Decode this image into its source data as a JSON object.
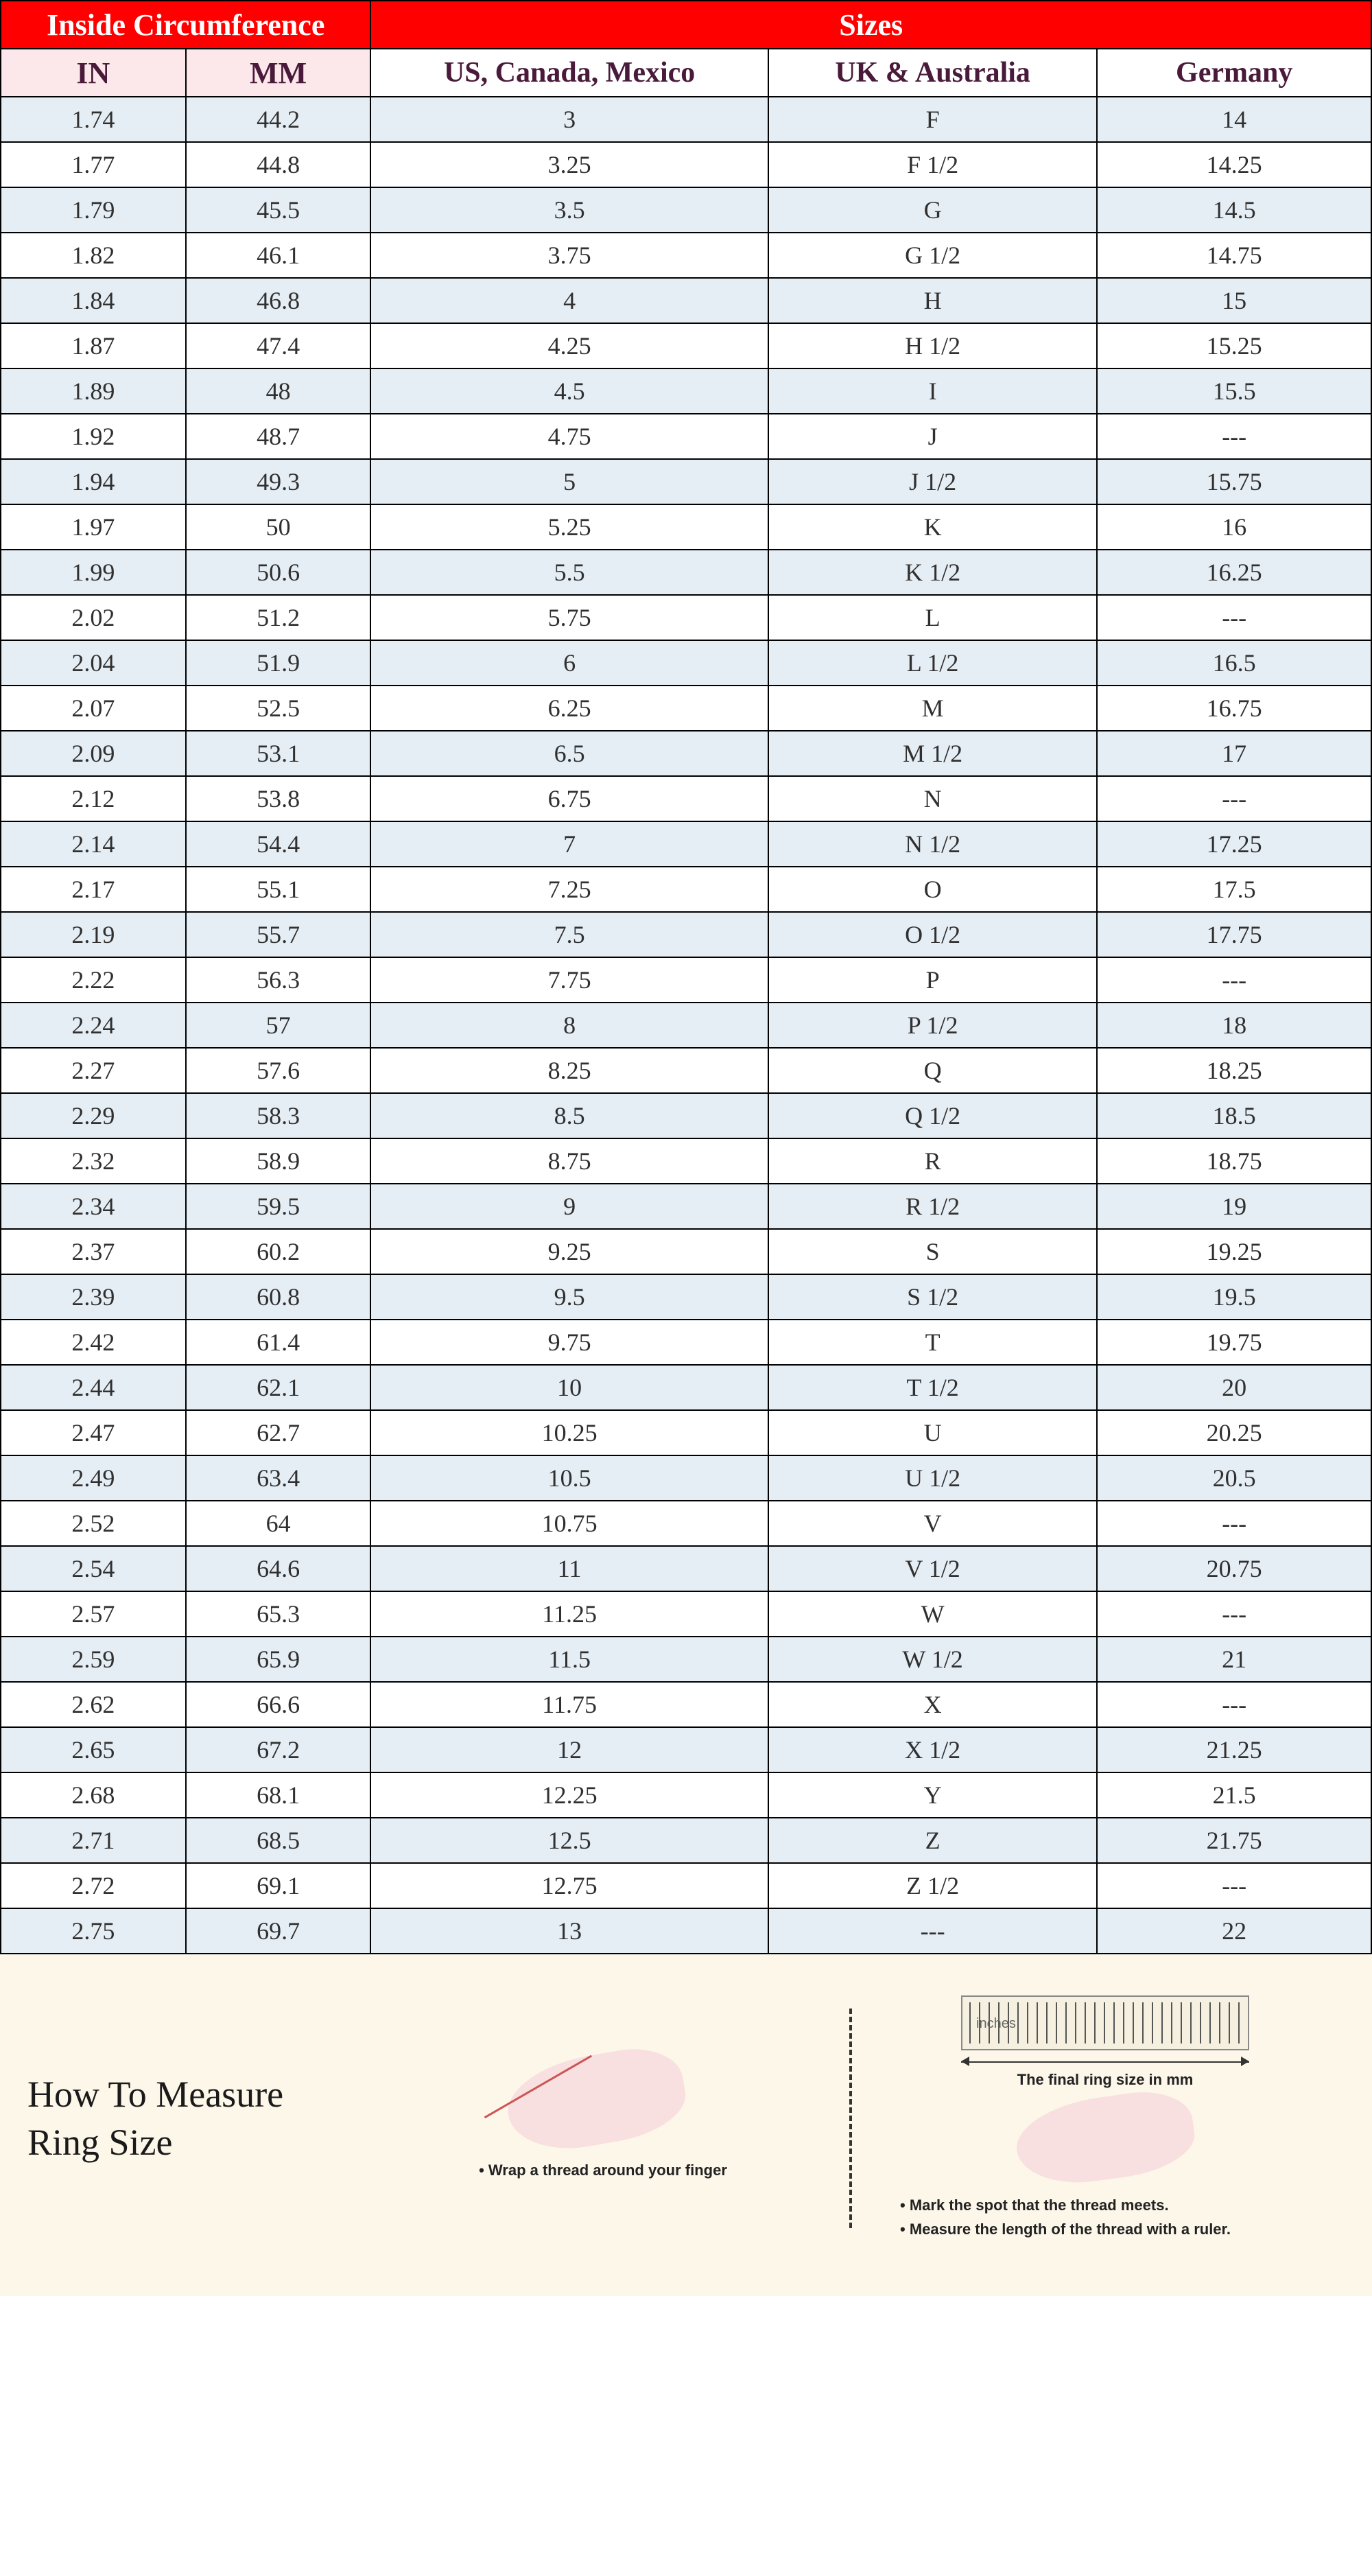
{
  "table": {
    "header_group_left": "Inside Circumference",
    "header_group_right": "Sizes",
    "columns": [
      "IN",
      "MM",
      "US, Canada, Mexico",
      "UK &  Australia",
      "Germany"
    ],
    "header_red_bg": "#ff0000",
    "header_red_fg": "#ffffff",
    "header_sub_bg_left": "#fce8ea",
    "header_sub_bg_right": "#ffffff",
    "header_sub_fg": "#4a1a3a",
    "row_odd_bg": "#e6eef5",
    "row_even_bg": "#ffffff",
    "cell_fg": "#303030",
    "border_color": "#000000",
    "header_fontsize": 44,
    "subheader_fontsize": 42,
    "cell_fontsize": 36,
    "rows": [
      [
        "1.74",
        "44.2",
        "3",
        "F",
        "14"
      ],
      [
        "1.77",
        "44.8",
        "3.25",
        "F 1/2",
        "14.25"
      ],
      [
        "1.79",
        "45.5",
        "3.5",
        "G",
        "14.5"
      ],
      [
        "1.82",
        "46.1",
        "3.75",
        "G 1/2",
        "14.75"
      ],
      [
        "1.84",
        "46.8",
        "4",
        "H",
        "15"
      ],
      [
        "1.87",
        "47.4",
        "4.25",
        "H 1/2",
        "15.25"
      ],
      [
        "1.89",
        "48",
        "4.5",
        "I",
        "15.5"
      ],
      [
        "1.92",
        "48.7",
        "4.75",
        "J",
        "---"
      ],
      [
        "1.94",
        "49.3",
        "5",
        "J 1/2",
        "15.75"
      ],
      [
        "1.97",
        "50",
        "5.25",
        "K",
        "16"
      ],
      [
        "1.99",
        "50.6",
        "5.5",
        "K 1/2",
        "16.25"
      ],
      [
        "2.02",
        "51.2",
        "5.75",
        "L",
        "---"
      ],
      [
        "2.04",
        "51.9",
        "6",
        "L 1/2",
        "16.5"
      ],
      [
        "2.07",
        "52.5",
        "6.25",
        "M",
        "16.75"
      ],
      [
        "2.09",
        "53.1",
        "6.5",
        "M 1/2",
        "17"
      ],
      [
        "2.12",
        "53.8",
        "6.75",
        "N",
        "---"
      ],
      [
        "2.14",
        "54.4",
        "7",
        "N 1/2",
        "17.25"
      ],
      [
        "2.17",
        "55.1",
        "7.25",
        "O",
        "17.5"
      ],
      [
        "2.19",
        "55.7",
        "7.5",
        "O 1/2",
        "17.75"
      ],
      [
        "2.22",
        "56.3",
        "7.75",
        "P",
        "---"
      ],
      [
        "2.24",
        "57",
        "8",
        "P 1/2",
        "18"
      ],
      [
        "2.27",
        "57.6",
        "8.25",
        "Q",
        "18.25"
      ],
      [
        "2.29",
        "58.3",
        "8.5",
        "Q 1/2",
        "18.5"
      ],
      [
        "2.32",
        "58.9",
        "8.75",
        "R",
        "18.75"
      ],
      [
        "2.34",
        "59.5",
        "9",
        "R 1/2",
        "19"
      ],
      [
        "2.37",
        "60.2",
        "9.25",
        "S",
        "19.25"
      ],
      [
        "2.39",
        "60.8",
        "9.5",
        "S 1/2",
        "19.5"
      ],
      [
        "2.42",
        "61.4",
        "9.75",
        "T",
        "19.75"
      ],
      [
        "2.44",
        "62.1",
        "10",
        "T 1/2",
        "20"
      ],
      [
        "2.47",
        "62.7",
        "10.25",
        "U",
        "20.25"
      ],
      [
        "2.49",
        "63.4",
        "10.5",
        "U 1/2",
        "20.5"
      ],
      [
        "2.52",
        "64",
        "10.75",
        "V",
        "---"
      ],
      [
        "2.54",
        "64.6",
        "11",
        "V 1/2",
        "20.75"
      ],
      [
        "2.57",
        "65.3",
        "11.25",
        "W",
        "---"
      ],
      [
        "2.59",
        "65.9",
        "11.5",
        "W 1/2",
        "21"
      ],
      [
        "2.62",
        "66.6",
        "11.75",
        "X",
        "---"
      ],
      [
        "2.65",
        "67.2",
        "12",
        "X 1/2",
        "21.25"
      ],
      [
        "2.68",
        "68.1",
        "12.25",
        "Y",
        "21.5"
      ],
      [
        "2.71",
        "68.5",
        "12.5",
        "Z",
        "21.75"
      ],
      [
        "2.72",
        "69.1",
        "12.75",
        "Z 1/2",
        "---"
      ],
      [
        "2.75",
        "69.7",
        "13",
        "---",
        "22"
      ]
    ]
  },
  "footer": {
    "title_line1": "How To Measure",
    "title_line2": "Ring Size",
    "background": "#fdf7ea",
    "title_fontsize": 54,
    "step1_bullet": "• Wrap a thread around your finger",
    "arrow_caption": "The final ring size in mm",
    "ruler_inches_label": "inches",
    "step2_bullet1": "• Mark the spot that the thread meets.",
    "step2_bullet2": "• Measure the length of the thread with a ruler.",
    "hand_color": "#f9e0e0",
    "thread_color": "#cc5555",
    "ruler_bg": "#f5f0e0",
    "bullet_fontsize": 22
  }
}
